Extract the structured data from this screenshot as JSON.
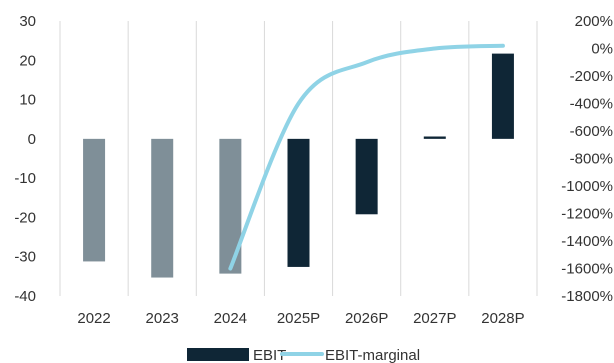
{
  "chart_data": {
    "type": "bar",
    "categories": [
      "2022",
      "2023",
      "2024",
      "2025P",
      "2026P",
      "2027P",
      "2028P"
    ],
    "series": [
      {
        "name": "EBIT",
        "type": "bar",
        "axis": "left",
        "values": [
          -31.2,
          -35.3,
          -34.3,
          -32.6,
          -19.2,
          0.6,
          21.7
        ],
        "colors": [
          "#7f8f98",
          "#7f8f98",
          "#7f8f98",
          "#0f2636",
          "#0f2636",
          "#0f2636",
          "#0f2636"
        ]
      },
      {
        "name": "EBIT-marginal",
        "type": "line",
        "axis": "right",
        "x": [
          "2024",
          "2025P",
          "2026P",
          "2027P",
          "2028P"
        ],
        "values": [
          -1600,
          -400,
          -100,
          0,
          20
        ],
        "color": "#8fd3e6"
      }
    ],
    "title": "",
    "xlabel": "",
    "ylabel": "",
    "ylim": [
      -40,
      30
    ],
    "yticks": [
      "30",
      "20",
      "10",
      "0",
      "-10",
      "-20",
      "-30",
      "-40"
    ],
    "y2lim": [
      -1800,
      200
    ],
    "y2ticks": [
      "200%",
      "0%",
      "-200%",
      "-400%",
      "-600%",
      "-800%",
      "-1000%",
      "-1200%",
      "-1400%",
      "-1600%",
      "-1800%"
    ],
    "grid": "vertical-category-lines",
    "legend": "bottom-center",
    "legend_entries": [
      "EBIT",
      "EBIT-marginal"
    ]
  }
}
